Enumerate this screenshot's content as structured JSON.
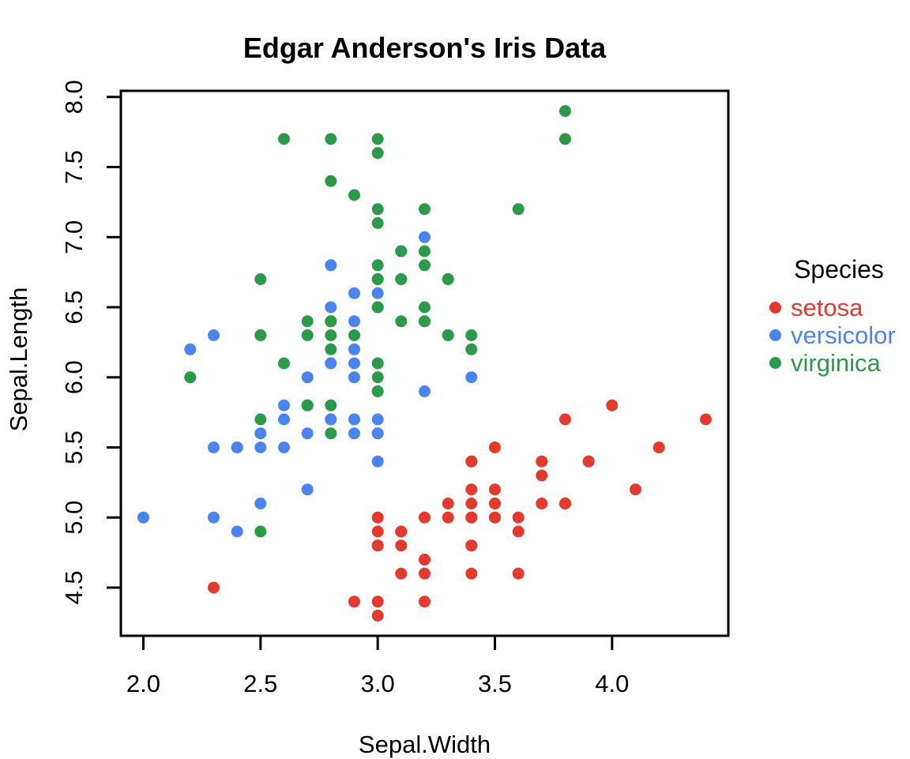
{
  "chart_data": {
    "type": "scatter",
    "title": "Edgar Anderson's Iris Data",
    "xlabel": "Sepal.Width",
    "ylabel": "Sepal.Length",
    "xlim": [
      1.904,
      4.496
    ],
    "ylim": [
      4.156,
      8.044
    ],
    "grid": false,
    "xticks": {
      "values": [
        2.0,
        2.5,
        3.0,
        3.5,
        4.0
      ],
      "labels": [
        "2.0",
        "2.5",
        "3.0",
        "3.5",
        "4.0"
      ]
    },
    "yticks": {
      "values": [
        4.5,
        5.0,
        5.5,
        6.0,
        6.5,
        7.0,
        7.5,
        8.0
      ],
      "labels": [
        "4.5",
        "5.0",
        "5.5",
        "6.0",
        "6.5",
        "7.0",
        "7.5",
        "8.0"
      ]
    },
    "marker": {
      "shape": "filled-circle",
      "radius_px": 7.5
    },
    "legend": {
      "title": "Species",
      "position": "right",
      "entries": [
        "setosa",
        "versicolor",
        "virginica"
      ]
    },
    "series": [
      {
        "name": "setosa",
        "color": "#E43A2E",
        "points": [
          [
            3.5,
            5.1
          ],
          [
            3.0,
            4.9
          ],
          [
            3.2,
            4.7
          ],
          [
            3.1,
            4.6
          ],
          [
            3.6,
            5.0
          ],
          [
            3.9,
            5.4
          ],
          [
            3.4,
            4.6
          ],
          [
            3.4,
            5.0
          ],
          [
            2.9,
            4.4
          ],
          [
            3.1,
            4.9
          ],
          [
            3.7,
            5.4
          ],
          [
            3.4,
            4.8
          ],
          [
            3.0,
            4.8
          ],
          [
            3.0,
            4.3
          ],
          [
            4.0,
            5.8
          ],
          [
            4.4,
            5.7
          ],
          [
            3.9,
            5.4
          ],
          [
            3.5,
            5.1
          ],
          [
            3.8,
            5.7
          ],
          [
            3.8,
            5.1
          ],
          [
            3.4,
            5.4
          ],
          [
            3.7,
            5.1
          ],
          [
            3.6,
            4.6
          ],
          [
            3.3,
            5.1
          ],
          [
            3.4,
            4.8
          ],
          [
            3.0,
            5.0
          ],
          [
            3.4,
            5.0
          ],
          [
            3.5,
            5.2
          ],
          [
            3.4,
            5.2
          ],
          [
            3.2,
            4.7
          ],
          [
            3.1,
            4.8
          ],
          [
            3.4,
            5.4
          ],
          [
            4.1,
            5.2
          ],
          [
            4.2,
            5.5
          ],
          [
            3.1,
            4.9
          ],
          [
            3.2,
            5.0
          ],
          [
            3.5,
            5.5
          ],
          [
            3.6,
            4.9
          ],
          [
            3.0,
            4.4
          ],
          [
            3.4,
            5.1
          ],
          [
            3.5,
            5.0
          ],
          [
            2.3,
            4.5
          ],
          [
            3.2,
            4.4
          ],
          [
            3.5,
            5.0
          ],
          [
            3.8,
            5.1
          ],
          [
            3.0,
            4.8
          ],
          [
            3.8,
            5.1
          ],
          [
            3.2,
            4.6
          ],
          [
            3.7,
            5.3
          ],
          [
            3.3,
            5.0
          ]
        ]
      },
      {
        "name": "versicolor",
        "color": "#4A85EF",
        "points": [
          [
            3.2,
            7.0
          ],
          [
            3.2,
            6.4
          ],
          [
            3.1,
            6.9
          ],
          [
            2.3,
            5.5
          ],
          [
            2.8,
            6.5
          ],
          [
            2.8,
            5.7
          ],
          [
            3.3,
            6.3
          ],
          [
            2.4,
            4.9
          ],
          [
            2.9,
            6.6
          ],
          [
            2.7,
            5.2
          ],
          [
            2.0,
            5.0
          ],
          [
            3.0,
            5.9
          ],
          [
            2.2,
            6.0
          ],
          [
            2.9,
            6.1
          ],
          [
            2.9,
            5.6
          ],
          [
            3.1,
            6.7
          ],
          [
            3.0,
            5.6
          ],
          [
            2.7,
            5.8
          ],
          [
            2.2,
            6.2
          ],
          [
            2.5,
            5.6
          ],
          [
            3.2,
            5.9
          ],
          [
            2.8,
            6.1
          ],
          [
            2.5,
            6.3
          ],
          [
            2.8,
            6.1
          ],
          [
            2.9,
            6.4
          ],
          [
            3.0,
            6.6
          ],
          [
            2.8,
            6.8
          ],
          [
            3.0,
            6.7
          ],
          [
            2.9,
            6.0
          ],
          [
            2.6,
            5.7
          ],
          [
            2.4,
            5.5
          ],
          [
            2.4,
            5.5
          ],
          [
            2.7,
            5.8
          ],
          [
            2.7,
            6.0
          ],
          [
            3.0,
            5.4
          ],
          [
            3.4,
            6.0
          ],
          [
            3.1,
            6.7
          ],
          [
            2.3,
            6.3
          ],
          [
            3.0,
            5.6
          ],
          [
            2.5,
            5.5
          ],
          [
            2.6,
            5.5
          ],
          [
            3.0,
            6.1
          ],
          [
            2.6,
            5.8
          ],
          [
            2.3,
            5.0
          ],
          [
            2.7,
            5.6
          ],
          [
            3.0,
            5.7
          ],
          [
            2.9,
            5.7
          ],
          [
            2.9,
            6.2
          ],
          [
            2.5,
            5.1
          ],
          [
            2.8,
            5.7
          ]
        ]
      },
      {
        "name": "virginica",
        "color": "#2C9B49",
        "points": [
          [
            3.3,
            6.3
          ],
          [
            2.7,
            5.8
          ],
          [
            3.0,
            7.1
          ],
          [
            2.9,
            6.3
          ],
          [
            3.0,
            6.5
          ],
          [
            3.0,
            7.6
          ],
          [
            2.5,
            4.9
          ],
          [
            2.9,
            7.3
          ],
          [
            2.5,
            6.7
          ],
          [
            3.6,
            7.2
          ],
          [
            3.2,
            6.5
          ],
          [
            2.7,
            6.4
          ],
          [
            3.0,
            6.8
          ],
          [
            2.5,
            5.7
          ],
          [
            2.8,
            5.8
          ],
          [
            3.2,
            6.4
          ],
          [
            3.0,
            6.5
          ],
          [
            3.8,
            7.7
          ],
          [
            2.6,
            7.7
          ],
          [
            2.2,
            6.0
          ],
          [
            3.2,
            6.9
          ],
          [
            2.8,
            5.6
          ],
          [
            2.8,
            7.7
          ],
          [
            2.7,
            6.3
          ],
          [
            3.3,
            6.7
          ],
          [
            3.2,
            7.2
          ],
          [
            2.8,
            6.2
          ],
          [
            3.0,
            6.1
          ],
          [
            2.8,
            6.4
          ],
          [
            3.0,
            7.2
          ],
          [
            2.8,
            7.4
          ],
          [
            3.8,
            7.9
          ],
          [
            2.8,
            6.4
          ],
          [
            2.8,
            6.3
          ],
          [
            2.6,
            6.1
          ],
          [
            3.0,
            7.7
          ],
          [
            3.4,
            6.3
          ],
          [
            3.1,
            6.4
          ],
          [
            3.0,
            6.0
          ],
          [
            3.1,
            6.9
          ],
          [
            3.1,
            6.7
          ],
          [
            3.1,
            6.9
          ],
          [
            2.7,
            5.8
          ],
          [
            3.2,
            6.8
          ],
          [
            3.3,
            6.7
          ],
          [
            3.0,
            6.7
          ],
          [
            2.5,
            6.3
          ],
          [
            3.0,
            6.5
          ],
          [
            3.4,
            6.2
          ],
          [
            3.0,
            5.9
          ]
        ]
      }
    ]
  }
}
